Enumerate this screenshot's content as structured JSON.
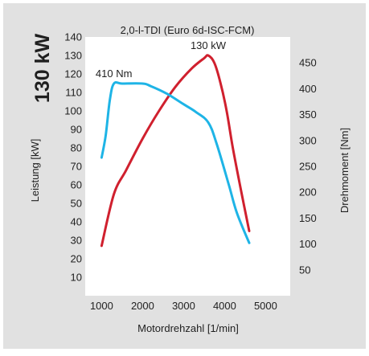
{
  "power_badge": "130 kW",
  "chart_data": {
    "type": "line",
    "title": "2,0-l-TDI (Euro 6d-ISC-FCM)",
    "xlabel": "Motordrehzahl [1/min]",
    "ylabel_left": "Leistung [kW]",
    "ylabel_right": "Drehmoment [Nm]",
    "xlim": [
      600,
      5600
    ],
    "ylim_left": [
      0,
      140
    ],
    "ylim_right": [
      0,
      500
    ],
    "x_ticks": [
      1000,
      2000,
      3000,
      4000,
      5000
    ],
    "y_left_ticks": [
      10,
      20,
      30,
      40,
      50,
      60,
      70,
      80,
      90,
      100,
      110,
      120,
      130,
      140
    ],
    "y_right_ticks": [
      50,
      100,
      150,
      200,
      250,
      300,
      350,
      400,
      450
    ],
    "grid": false,
    "colors": {
      "panel_background": "#e1e1e1",
      "plot_background": "#ffffff",
      "power_line": "#d0202e",
      "torque_line": "#1eb4e6"
    },
    "series": [
      {
        "axis": "left",
        "color": "#d0202e",
        "points": [
          [
            1000,
            27
          ],
          [
            1300,
            55
          ],
          [
            1600,
            68
          ],
          [
            2000,
            85
          ],
          [
            2400,
            100
          ],
          [
            2800,
            113
          ],
          [
            3200,
            123
          ],
          [
            3500,
            128.5
          ],
          [
            3600,
            130
          ],
          [
            3750,
            126
          ],
          [
            3900,
            115
          ],
          [
            4050,
            100
          ],
          [
            4200,
            80
          ],
          [
            4400,
            57
          ],
          [
            4600,
            35
          ]
        ]
      },
      {
        "axis": "right",
        "color": "#1eb4e6",
        "points": [
          [
            1000,
            267
          ],
          [
            1100,
            310
          ],
          [
            1200,
            378
          ],
          [
            1300,
            410
          ],
          [
            1500,
            410
          ],
          [
            2000,
            410
          ],
          [
            2200,
            405
          ],
          [
            2600,
            390
          ],
          [
            3000,
            370
          ],
          [
            3300,
            355
          ],
          [
            3600,
            335
          ],
          [
            3800,
            295
          ],
          [
            4100,
            215
          ],
          [
            4300,
            160
          ],
          [
            4600,
            102
          ]
        ]
      }
    ],
    "annotations": [
      {
        "text": "130 kW",
        "x": 3600,
        "y": 130,
        "axis": "left",
        "position": "above"
      },
      {
        "text": "410 Nm",
        "x": 1300,
        "y": 410,
        "axis": "right",
        "position": "above"
      }
    ]
  }
}
